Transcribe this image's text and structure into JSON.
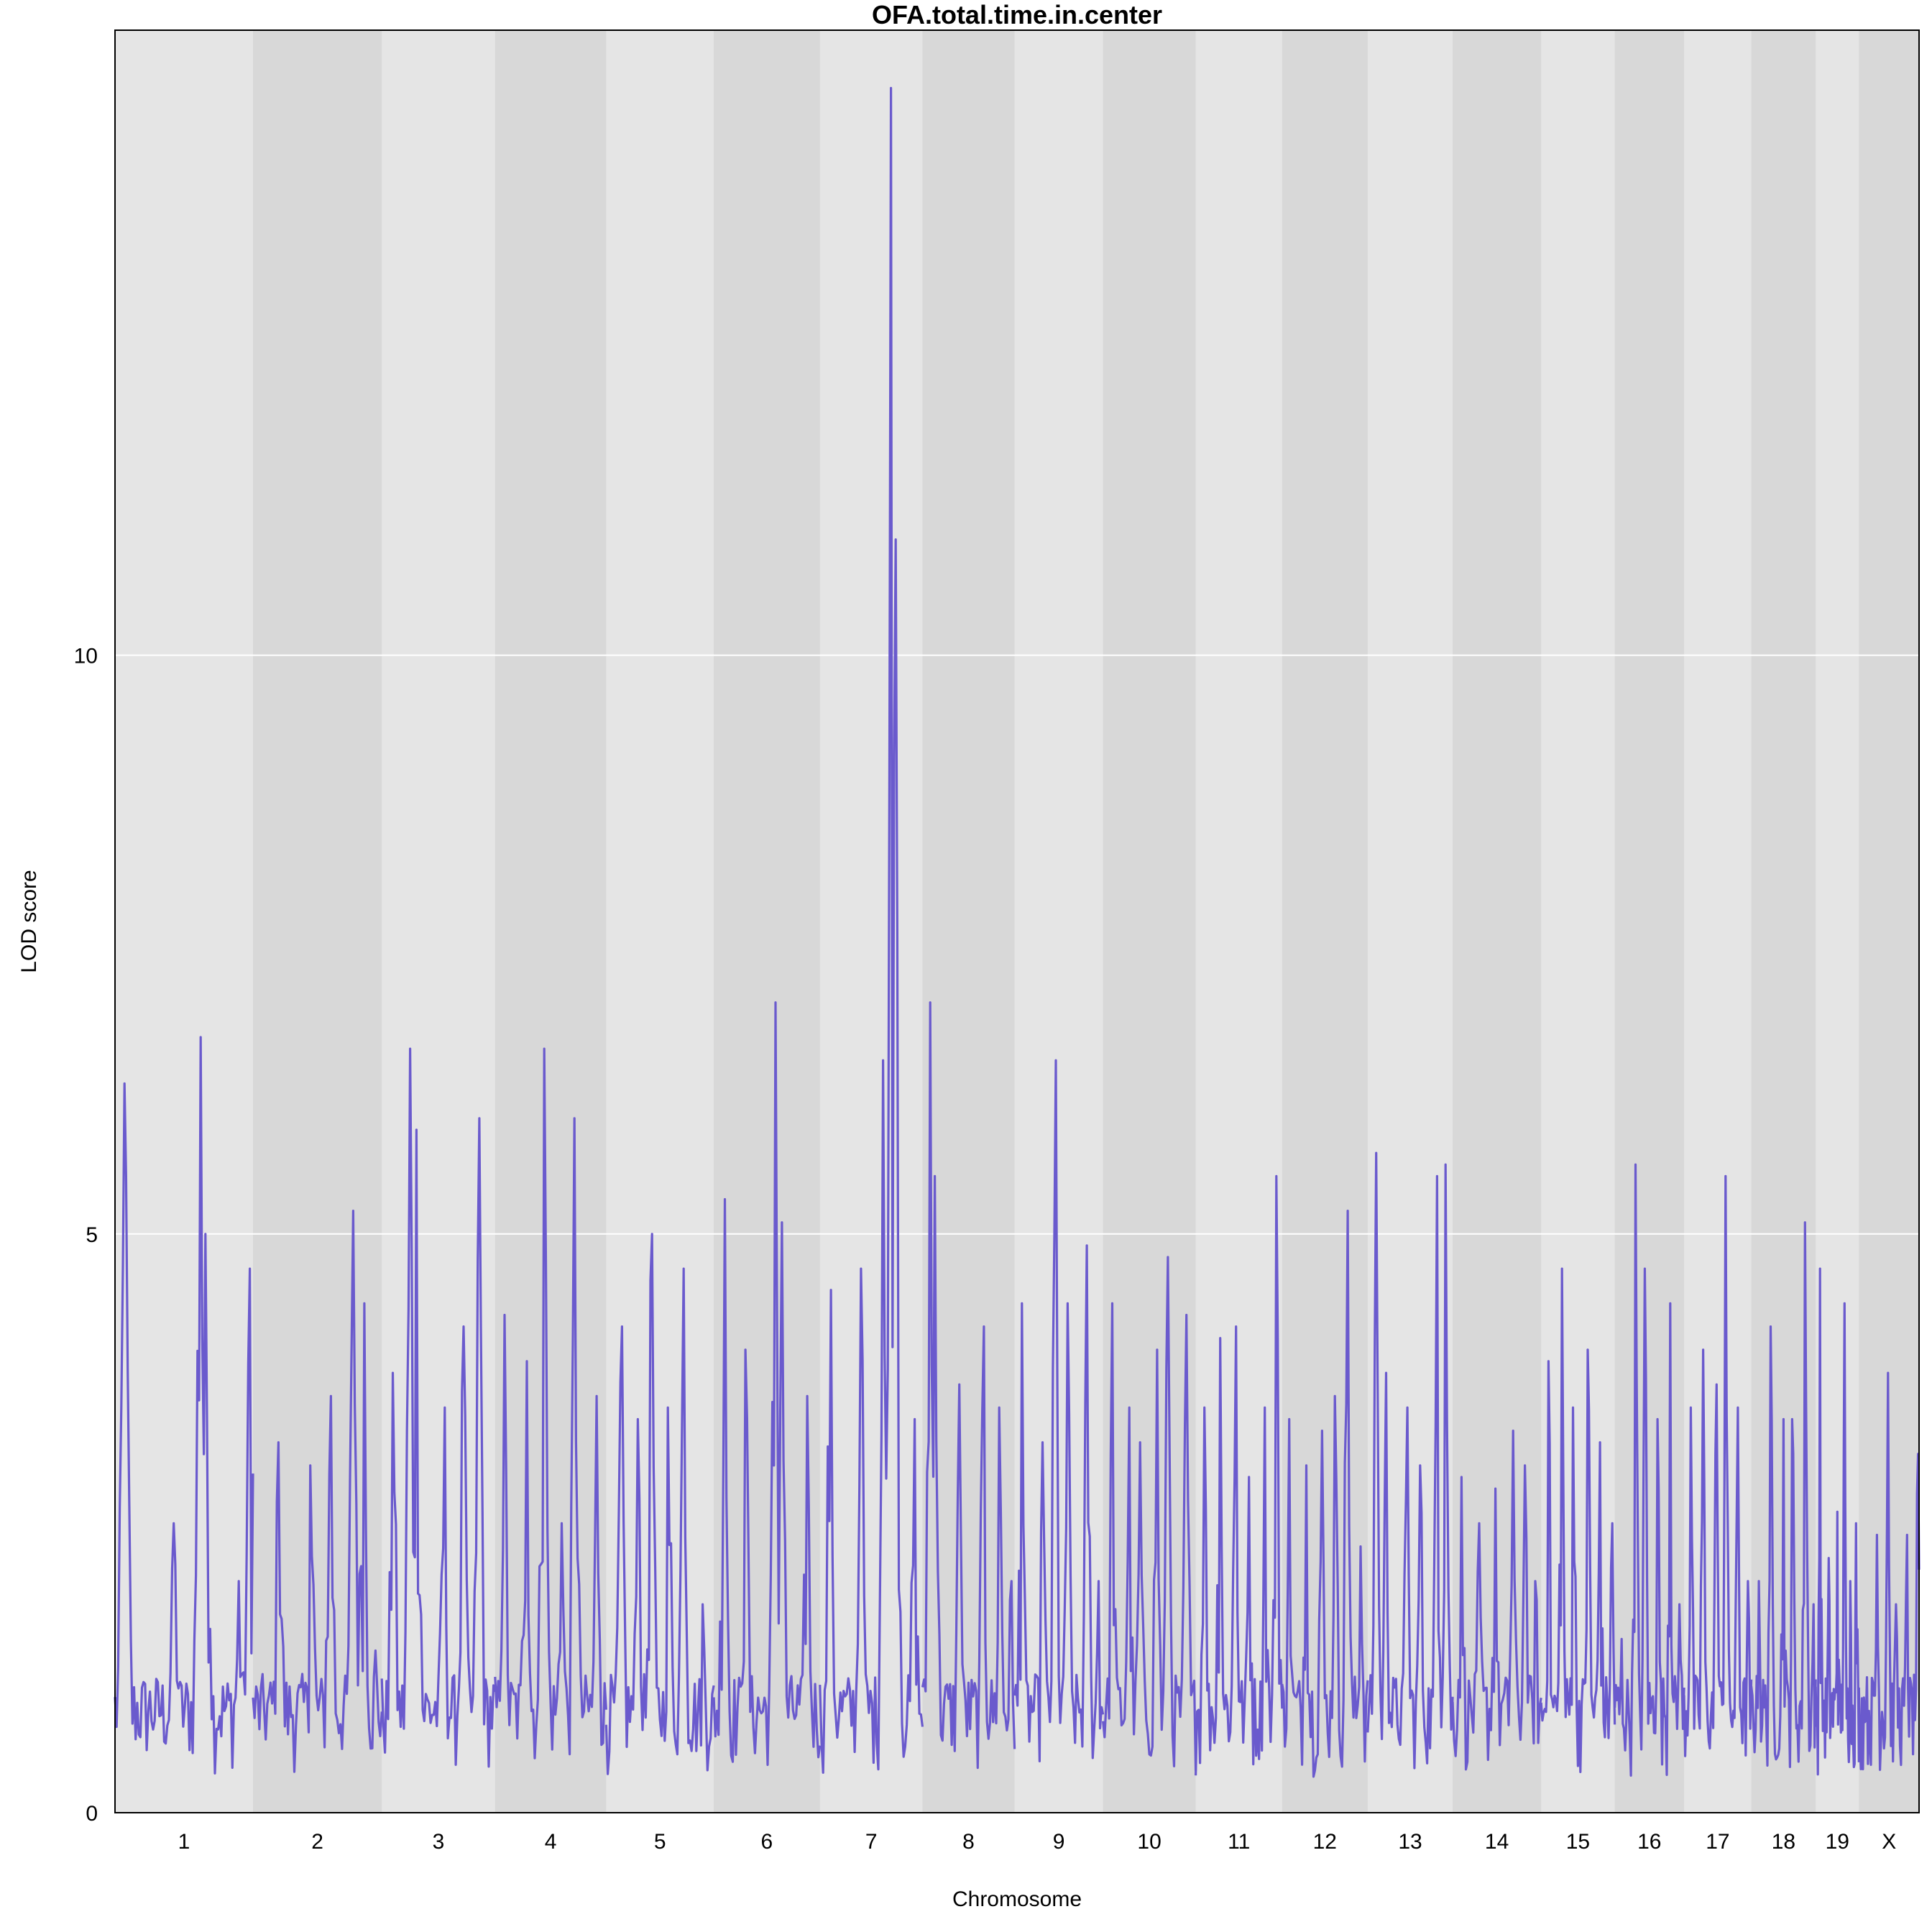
{
  "chart_data": {
    "type": "line",
    "title": "OFA.total.time.in.center",
    "xlabel": "Chromosome",
    "ylabel": "LOD score",
    "ylim": [
      0,
      15.4
    ],
    "y_ticks": [
      0,
      5,
      10
    ],
    "grid": "horizontal",
    "line_color": "#6a5acd",
    "band_colors": [
      "#e5e5e5",
      "#d8d8d8"
    ],
    "chromosomes": [
      {
        "label": "1",
        "length": 195,
        "peaks": [
          [
            0.07,
            6.3
          ],
          [
            0.43,
            2.5
          ],
          [
            0.62,
            6.7
          ],
          [
            0.66,
            5.0
          ],
          [
            0.9,
            2.0
          ],
          [
            0.98,
            4.7
          ]
        ]
      },
      {
        "label": "2",
        "length": 182,
        "peaks": [
          [
            0.2,
            3.2
          ],
          [
            0.45,
            3.0
          ],
          [
            0.6,
            3.6
          ],
          [
            0.78,
            5.2
          ],
          [
            0.86,
            4.4
          ],
          [
            0.95,
            1.4
          ]
        ]
      },
      {
        "label": "3",
        "length": 160,
        "peaks": [
          [
            0.1,
            3.8
          ],
          [
            0.25,
            6.6
          ],
          [
            0.31,
            5.9
          ],
          [
            0.55,
            3.5
          ],
          [
            0.72,
            4.2
          ],
          [
            0.86,
            6.0
          ]
        ]
      },
      {
        "label": "4",
        "length": 157,
        "peaks": [
          [
            0.08,
            4.3
          ],
          [
            0.28,
            3.9
          ],
          [
            0.44,
            6.6
          ],
          [
            0.6,
            2.5
          ],
          [
            0.72,
            6.0
          ],
          [
            0.92,
            3.6
          ]
        ]
      },
      {
        "label": "5",
        "length": 152,
        "peaks": [
          [
            0.14,
            4.2
          ],
          [
            0.3,
            3.4
          ],
          [
            0.42,
            5.0
          ],
          [
            0.58,
            3.5
          ],
          [
            0.72,
            4.7
          ],
          [
            0.9,
            1.8
          ]
        ]
      },
      {
        "label": "6",
        "length": 150,
        "peaks": [
          [
            0.1,
            5.3
          ],
          [
            0.3,
            4.0
          ],
          [
            0.56,
            3.0
          ],
          [
            0.58,
            7.0
          ],
          [
            0.64,
            5.1
          ],
          [
            0.88,
            3.6
          ]
        ]
      },
      {
        "label": "7",
        "length": 145,
        "peaks": [
          [
            0.1,
            4.8
          ],
          [
            0.4,
            4.7
          ],
          [
            0.62,
            6.5
          ],
          [
            0.7,
            14.9
          ],
          [
            0.74,
            11.0
          ],
          [
            0.92,
            3.4
          ]
        ]
      },
      {
        "label": "8",
        "length": 130,
        "peaks": [
          [
            0.08,
            7.0
          ],
          [
            0.14,
            5.5
          ],
          [
            0.4,
            3.7
          ],
          [
            0.66,
            4.2
          ],
          [
            0.84,
            3.5
          ],
          [
            0.96,
            2.0
          ]
        ]
      },
      {
        "label": "9",
        "length": 125,
        "peaks": [
          [
            0.08,
            4.4
          ],
          [
            0.32,
            3.2
          ],
          [
            0.46,
            6.5
          ],
          [
            0.6,
            4.4
          ],
          [
            0.82,
            4.9
          ],
          [
            0.95,
            2.0
          ]
        ]
      },
      {
        "label": "10",
        "length": 131,
        "peaks": [
          [
            0.1,
            4.4
          ],
          [
            0.28,
            3.5
          ],
          [
            0.4,
            3.2
          ],
          [
            0.58,
            4.0
          ],
          [
            0.7,
            4.8
          ],
          [
            0.9,
            4.3
          ]
        ]
      },
      {
        "label": "11",
        "length": 122,
        "peaks": [
          [
            0.1,
            3.5
          ],
          [
            0.28,
            4.1
          ],
          [
            0.46,
            4.2
          ],
          [
            0.62,
            2.9
          ],
          [
            0.8,
            3.5
          ],
          [
            0.94,
            5.5
          ]
        ]
      },
      {
        "label": "12",
        "length": 121,
        "peaks": [
          [
            0.08,
            3.4
          ],
          [
            0.28,
            3.0
          ],
          [
            0.46,
            3.3
          ],
          [
            0.62,
            3.6
          ],
          [
            0.76,
            5.2
          ],
          [
            0.92,
            2.3
          ]
        ]
      },
      {
        "label": "13",
        "length": 120,
        "peaks": [
          [
            0.1,
            5.7
          ],
          [
            0.22,
            3.8
          ],
          [
            0.46,
            3.5
          ],
          [
            0.62,
            3.0
          ],
          [
            0.82,
            5.5
          ],
          [
            0.92,
            5.6
          ]
        ]
      },
      {
        "label": "14",
        "length": 125,
        "peaks": [
          [
            0.1,
            2.9
          ],
          [
            0.3,
            2.5
          ],
          [
            0.48,
            2.8
          ],
          [
            0.68,
            3.3
          ],
          [
            0.82,
            3.0
          ],
          [
            0.94,
            2.0
          ]
        ]
      },
      {
        "label": "15",
        "length": 104,
        "peaks": [
          [
            0.1,
            3.9
          ],
          [
            0.28,
            4.7
          ],
          [
            0.44,
            3.5
          ],
          [
            0.64,
            4.0
          ],
          [
            0.8,
            3.2
          ],
          [
            0.96,
            2.5
          ]
        ]
      },
      {
        "label": "16",
        "length": 98,
        "peaks": [
          [
            0.1,
            1.5
          ],
          [
            0.3,
            5.6
          ],
          [
            0.44,
            4.7
          ],
          [
            0.62,
            3.4
          ],
          [
            0.8,
            4.4
          ],
          [
            0.94,
            1.8
          ]
        ]
      },
      {
        "label": "17",
        "length": 95,
        "peaks": [
          [
            0.1,
            3.5
          ],
          [
            0.28,
            4.0
          ],
          [
            0.48,
            3.7
          ],
          [
            0.62,
            5.5
          ],
          [
            0.8,
            3.5
          ],
          [
            0.95,
            2.0
          ]
        ]
      },
      {
        "label": "18",
        "length": 91,
        "peaks": [
          [
            0.12,
            2.0
          ],
          [
            0.3,
            4.2
          ],
          [
            0.5,
            3.4
          ],
          [
            0.64,
            3.4
          ],
          [
            0.84,
            5.1
          ],
          [
            0.96,
            1.8
          ]
        ]
      },
      {
        "label": "19",
        "length": 61,
        "peaks": [
          [
            0.1,
            4.7
          ],
          [
            0.3,
            2.2
          ],
          [
            0.5,
            2.6
          ],
          [
            0.66,
            4.4
          ],
          [
            0.8,
            2.0
          ],
          [
            0.94,
            2.5
          ]
        ]
      },
      {
        "label": "X",
        "length": 85,
        "peaks": [
          [
            0.12,
            0.8
          ],
          [
            0.3,
            2.4
          ],
          [
            0.48,
            3.8
          ],
          [
            0.62,
            1.8
          ],
          [
            0.8,
            2.4
          ],
          [
            0.98,
            3.1
          ]
        ]
      }
    ]
  }
}
